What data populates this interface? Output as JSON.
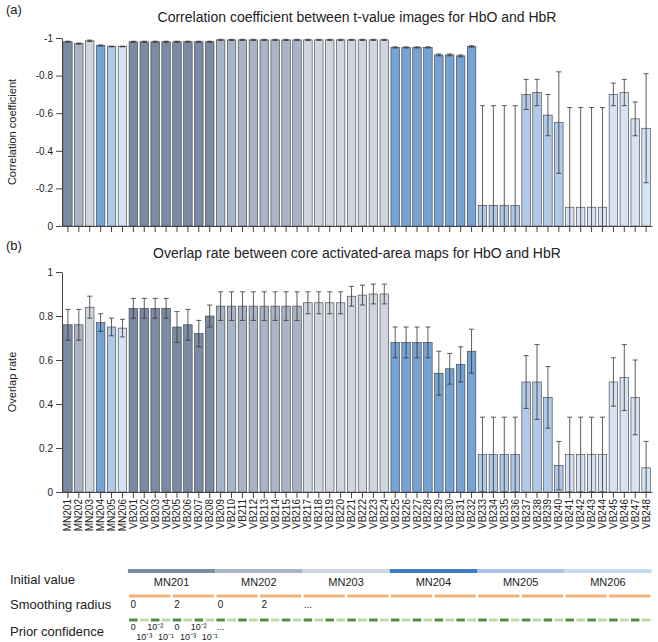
{
  "chart_data": [
    {
      "type": "bar",
      "label": "(a)",
      "title": "Correlation coefficient between t-value images for HbO and HbR",
      "ylabel": "Correlation coefficient",
      "categories": [
        "MN201",
        "MN202",
        "MN203",
        "MN204",
        "MN205",
        "MN206",
        "VB201",
        "VB202",
        "VB203",
        "VB204",
        "VB205",
        "VB206",
        "VB207",
        "VB208",
        "VB209",
        "VB210",
        "VB211",
        "VB212",
        "VB213",
        "VB214",
        "VB215",
        "VB216",
        "VB217",
        "VB218",
        "VB219",
        "VB220",
        "VB221",
        "VB222",
        "VB223",
        "VB224",
        "VB225",
        "VB226",
        "VB227",
        "VB228",
        "VB229",
        "VB230",
        "VB231",
        "VB232",
        "VB233",
        "VB234",
        "VB235",
        "VB236",
        "VB237",
        "VB238",
        "VB239",
        "VB240",
        "VB241",
        "VB242",
        "VB243",
        "VB244",
        "VB245",
        "VB246",
        "VB247",
        "VB248"
      ],
      "values": [
        -0.98,
        -0.97,
        -0.985,
        -0.96,
        -0.955,
        -0.955,
        -0.98,
        -0.98,
        -0.98,
        -0.98,
        -0.98,
        -0.98,
        -0.98,
        -0.98,
        -0.99,
        -0.99,
        -0.99,
        -0.99,
        -0.99,
        -0.99,
        -0.99,
        -0.99,
        -0.99,
        -0.99,
        -0.99,
        -0.99,
        -0.99,
        -0.99,
        -0.99,
        -0.99,
        -0.95,
        -0.95,
        -0.95,
        -0.95,
        -0.91,
        -0.91,
        -0.905,
        -0.955,
        -0.11,
        -0.11,
        -0.11,
        -0.11,
        -0.7,
        -0.71,
        -0.59,
        -0.55,
        -0.1,
        -0.1,
        -0.1,
        -0.1,
        -0.7,
        -0.71,
        -0.57,
        -0.52
      ],
      "errors": [
        0.003,
        0.003,
        0.004,
        0.003,
        0.002,
        0.002,
        0.003,
        0.003,
        0.003,
        0.003,
        0.003,
        0.003,
        0.003,
        0.003,
        0.003,
        0.003,
        0.003,
        0.003,
        0.003,
        0.003,
        0.003,
        0.003,
        0.003,
        0.003,
        0.003,
        0.003,
        0.003,
        0.003,
        0.003,
        0.003,
        0.003,
        0.003,
        0.003,
        0.003,
        0.005,
        0.005,
        0.005,
        0.004,
        0.53,
        0.53,
        0.53,
        0.53,
        0.08,
        0.07,
        0.11,
        0.27,
        0.53,
        0.53,
        0.53,
        0.53,
        0.06,
        0.07,
        0.09,
        0.29
      ],
      "colors": [
        "#7b8ba4",
        "#a9b5c6",
        "#cfd6e0",
        "#76a3d6",
        "#b0c9e7",
        "#d6e3f3",
        "#7b8ba4",
        "#7b8ba4",
        "#7b8ba4",
        "#7b8ba4",
        "#7b8ba4",
        "#7b8ba4",
        "#7b8ba4",
        "#7b8ba4",
        "#a9b5c6",
        "#a9b5c6",
        "#a9b5c6",
        "#a9b5c6",
        "#a9b5c6",
        "#a9b5c6",
        "#a9b5c6",
        "#a9b5c6",
        "#cfd6e0",
        "#cfd6e0",
        "#cfd6e0",
        "#cfd6e0",
        "#cfd6e0",
        "#cfd6e0",
        "#cfd6e0",
        "#cfd6e0",
        "#76a3d6",
        "#76a3d6",
        "#76a3d6",
        "#76a3d6",
        "#76a3d6",
        "#76a3d6",
        "#76a3d6",
        "#76a3d6",
        "#b0c9e7",
        "#b0c9e7",
        "#b0c9e7",
        "#b0c9e7",
        "#b0c9e7",
        "#b0c9e7",
        "#b0c9e7",
        "#b0c9e7",
        "#d6e3f3",
        "#d6e3f3",
        "#d6e3f3",
        "#d6e3f3",
        "#d6e3f3",
        "#d6e3f3",
        "#d6e3f3",
        "#d6e3f3"
      ],
      "ylim": [
        0,
        -1
      ],
      "yticks": [
        -1,
        -0.8,
        -0.6,
        -0.4,
        -0.2,
        0
      ],
      "tick_labels": "y"
    },
    {
      "type": "bar",
      "label": "(b)",
      "title": "Overlap rate between core activated-area maps for HbO and HbR",
      "ylabel": "Overlap rate",
      "categories": [
        "MN201",
        "MN202",
        "MN203",
        "MN204",
        "MN205",
        "MN206",
        "VB201",
        "VB202",
        "VB203",
        "VB204",
        "VB205",
        "VB206",
        "VB207",
        "VB208",
        "VB209",
        "VB210",
        "VB211",
        "VB212",
        "VB213",
        "VB214",
        "VB215",
        "VB216",
        "VB217",
        "VB218",
        "VB219",
        "VB220",
        "VB221",
        "VB222",
        "VB223",
        "VB224",
        "VB225",
        "VB226",
        "VB227",
        "VB228",
        "VB229",
        "VB230",
        "VB231",
        "VB232",
        "VB233",
        "VB234",
        "VB235",
        "VB236",
        "VB237",
        "VB238",
        "VB239",
        "VB240",
        "VB241",
        "VB242",
        "VB243",
        "VB244",
        "VB245",
        "VB246",
        "VB247",
        "VB248"
      ],
      "values": [
        0.76,
        0.76,
        0.84,
        0.77,
        0.75,
        0.745,
        0.835,
        0.835,
        0.835,
        0.835,
        0.75,
        0.76,
        0.72,
        0.8,
        0.845,
        0.845,
        0.845,
        0.845,
        0.845,
        0.845,
        0.845,
        0.845,
        0.86,
        0.86,
        0.86,
        0.86,
        0.89,
        0.895,
        0.9,
        0.9,
        0.68,
        0.68,
        0.68,
        0.68,
        0.54,
        0.56,
        0.58,
        0.64,
        0.17,
        0.17,
        0.17,
        0.17,
        0.5,
        0.5,
        0.43,
        0.12,
        0.17,
        0.17,
        0.17,
        0.17,
        0.5,
        0.52,
        0.43,
        0.11
      ],
      "errors": [
        0.07,
        0.07,
        0.05,
        0.04,
        0.04,
        0.04,
        0.045,
        0.045,
        0.045,
        0.045,
        0.07,
        0.07,
        0.06,
        0.05,
        0.065,
        0.065,
        0.065,
        0.065,
        0.065,
        0.065,
        0.065,
        0.065,
        0.05,
        0.05,
        0.05,
        0.05,
        0.045,
        0.045,
        0.045,
        0.045,
        0.07,
        0.07,
        0.07,
        0.07,
        0.1,
        0.07,
        0.08,
        0.1,
        0.17,
        0.17,
        0.17,
        0.17,
        0.12,
        0.17,
        0.14,
        0.11,
        0.17,
        0.17,
        0.17,
        0.17,
        0.11,
        0.15,
        0.17,
        0.12
      ],
      "colors": [
        "#7b8ba4",
        "#a9b5c6",
        "#cfd6e0",
        "#76a3d6",
        "#b0c9e7",
        "#d6e3f3",
        "#7b8ba4",
        "#7b8ba4",
        "#7b8ba4",
        "#7b8ba4",
        "#7b8ba4",
        "#7b8ba4",
        "#7b8ba4",
        "#7b8ba4",
        "#a9b5c6",
        "#a9b5c6",
        "#a9b5c6",
        "#a9b5c6",
        "#a9b5c6",
        "#a9b5c6",
        "#a9b5c6",
        "#a9b5c6",
        "#cfd6e0",
        "#cfd6e0",
        "#cfd6e0",
        "#cfd6e0",
        "#cfd6e0",
        "#cfd6e0",
        "#cfd6e0",
        "#cfd6e0",
        "#76a3d6",
        "#76a3d6",
        "#76a3d6",
        "#76a3d6",
        "#76a3d6",
        "#76a3d6",
        "#76a3d6",
        "#76a3d6",
        "#b0c9e7",
        "#b0c9e7",
        "#b0c9e7",
        "#b0c9e7",
        "#b0c9e7",
        "#b0c9e7",
        "#b0c9e7",
        "#b0c9e7",
        "#d6e3f3",
        "#d6e3f3",
        "#d6e3f3",
        "#d6e3f3",
        "#d6e3f3",
        "#d6e3f3",
        "#d6e3f3",
        "#d6e3f3"
      ],
      "ylim": [
        0,
        1
      ],
      "yticks": [
        0,
        0.2,
        0.4,
        0.6,
        0.8,
        1
      ]
    }
  ],
  "scheme": {
    "rows": [
      {
        "label": "Initial value",
        "items": [
          "MN201",
          "MN202",
          "MN203",
          "MN204",
          "MN205",
          "MN206"
        ],
        "colors": [
          "#7b8ba4",
          "#a9b5c6",
          "#cfd6e0",
          "#3f7cc4",
          "#a9c4e6",
          "#c9dbf0"
        ]
      },
      {
        "label": "Smoothing radius",
        "items": [
          "0",
          "2",
          "0",
          "2",
          "..."
        ],
        "color": "#f2b27a"
      },
      {
        "label": "Prior confidence",
        "items": [
          "0",
          "10⁻³",
          "10⁻²",
          "10⁻¹",
          "0",
          "10⁻³",
          "10⁻²",
          "10⁻¹",
          "..."
        ],
        "colors": [
          "#4f8f3f",
          "#b9dba5"
        ]
      }
    ]
  }
}
